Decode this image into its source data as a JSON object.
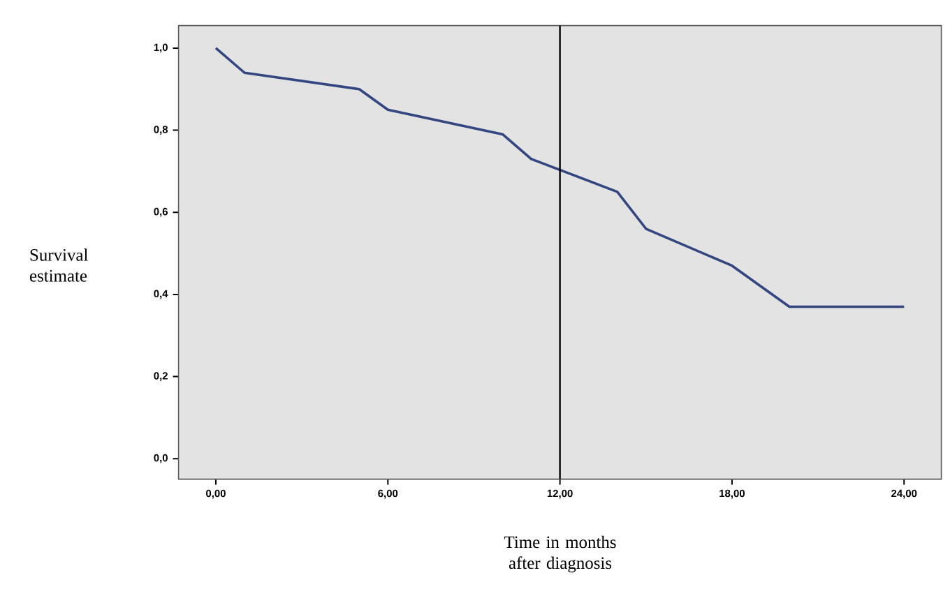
{
  "chart_data": {
    "type": "line",
    "xlabel": "Time in months after diagnosis",
    "ylabel": "Survival estimate",
    "x": [
      0,
      1,
      5,
      6,
      10,
      11,
      14,
      15,
      18,
      20,
      24
    ],
    "series": [
      {
        "color": "#34467f",
        "values": [
          1.0,
          0.94,
          0.9,
          0.85,
          0.79,
          0.73,
          0.65,
          0.56,
          0.47,
          0.37,
          0.37
        ]
      }
    ],
    "xlim": [
      -1.3,
      25.3
    ],
    "ylim": [
      -0.05,
      1.055
    ],
    "xticks": [
      {
        "value": 0,
        "label": "0,00"
      },
      {
        "value": 6,
        "label": "6,00"
      },
      {
        "value": 12,
        "label": "12,00"
      },
      {
        "value": 18,
        "label": "18,00"
      },
      {
        "value": 24,
        "label": "24,00"
      }
    ],
    "yticks": [
      {
        "value": 0,
        "label": "0,0"
      },
      {
        "value": 0.2,
        "label": "0,2"
      },
      {
        "value": 0.4,
        "label": "0,4"
      },
      {
        "value": 0.6,
        "label": "0,6"
      },
      {
        "value": 0.8,
        "label": "0,8"
      },
      {
        "value": 1.0,
        "label": "1,0"
      }
    ],
    "ref_lines": [
      {
        "axis": "x",
        "value": 12,
        "color": "#000000"
      }
    ],
    "marker": "none",
    "line_style": "solid"
  }
}
